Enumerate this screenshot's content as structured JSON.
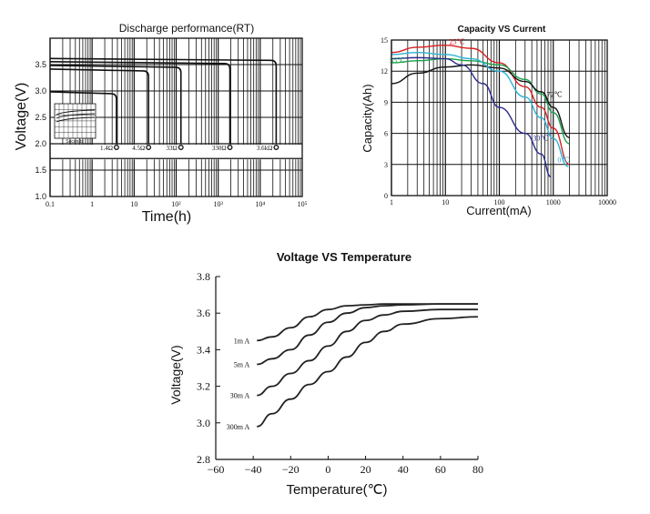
{
  "chart_data": [
    {
      "id": "discharge",
      "type": "line",
      "title": "Discharge performance(RT)",
      "xlabel": "Time(h)",
      "ylabel": "Voltage(V)",
      "xscale": "log",
      "xlim": [
        0.1,
        100000
      ],
      "ylim": [
        1.0,
        4.0
      ],
      "x_tick_labels": [
        "0.1",
        "1",
        "10",
        "10²",
        "10³",
        "10⁴",
        "10⁵"
      ],
      "y_tick_labels": [
        "1.0",
        "1.5",
        "2.0",
        "2.5",
        "3.0",
        "3.5"
      ],
      "y_ticks": [
        1.0,
        1.5,
        2.0,
        2.5,
        3.0,
        3.5
      ],
      "series": [
        {
          "name": "1.4Ω",
          "plateau": 2.95,
          "end_h": 3.8
        },
        {
          "name": "4.5Ω",
          "plateau": 3.38,
          "end_h": 22
        },
        {
          "name": "33Ω",
          "plateau": 3.45,
          "end_h": 130
        },
        {
          "name": "330Ω",
          "plateau": 3.52,
          "end_h": 1900
        },
        {
          "name": "3.6kΩ",
          "plateau": 3.58,
          "end_h": 24000
        }
      ],
      "inset_label": "Seconds"
    },
    {
      "id": "capacity",
      "type": "line",
      "title": "Capacity VS Current",
      "xlabel": "Current(mA)",
      "ylabel": "Capacity(Ah)",
      "xscale": "log",
      "xlim": [
        1,
        10000
      ],
      "ylim": [
        0,
        15
      ],
      "x_tick_labels": [
        "1",
        "10",
        "100",
        "1000",
        "10000"
      ],
      "y_tick_labels": [
        "0",
        "3",
        "6",
        "9",
        "12",
        "15"
      ],
      "y_ticks": [
        0,
        3,
        6,
        9,
        12,
        15
      ],
      "series": [
        {
          "name": "25℃",
          "color": "#d62020",
          "x": [
            1,
            3,
            10,
            30,
            100,
            300,
            600,
            1000,
            2000
          ],
          "y": [
            13.8,
            14.3,
            14.5,
            14.2,
            12.8,
            10.5,
            8.5,
            6.5,
            3.0
          ]
        },
        {
          "name": "55℃",
          "color": "#1aa04a",
          "x": [
            1,
            3,
            10,
            30,
            100,
            300,
            600,
            1000,
            2000
          ],
          "y": [
            12.8,
            13.0,
            13.2,
            13.0,
            12.6,
            11.2,
            9.8,
            8.0,
            5.0
          ]
        },
        {
          "name": "72℃",
          "color": "#111111",
          "x": [
            1,
            3,
            10,
            30,
            100,
            300,
            600,
            1000,
            2000
          ],
          "y": [
            10.8,
            11.8,
            12.4,
            12.6,
            12.3,
            11.0,
            10.0,
            8.5,
            5.6
          ]
        },
        {
          "name": "0℃",
          "color": "#2cb3d6",
          "x": [
            1,
            3,
            10,
            30,
            100,
            300,
            600,
            1000,
            1900
          ],
          "y": [
            13.6,
            13.8,
            13.6,
            13.2,
            12.0,
            9.5,
            7.5,
            5.5,
            2.8
          ]
        },
        {
          "name": "-30℃",
          "color": "#2a2a8c",
          "x": [
            1,
            3,
            10,
            20,
            50,
            100,
            300,
            600,
            900
          ],
          "y": [
            13.2,
            13.3,
            13.2,
            12.6,
            10.8,
            8.5,
            6.0,
            4.0,
            1.8
          ]
        }
      ]
    },
    {
      "id": "voltage_temp",
      "type": "line",
      "title": "Voltage VS Temperature",
      "xlabel": "Temperature(℃)",
      "ylabel": "Voltage(V)",
      "xlim": [
        -60,
        80
      ],
      "ylim": [
        2.8,
        3.8
      ],
      "x_ticks": [
        -60,
        -40,
        -20,
        0,
        20,
        40,
        60,
        80
      ],
      "x_tick_labels": [
        "−60",
        "−40",
        "−20",
        "0",
        "20",
        "40",
        "60",
        "80"
      ],
      "y_ticks": [
        2.8,
        3.0,
        3.2,
        3.4,
        3.6,
        3.8
      ],
      "y_tick_labels": [
        "2.8",
        "3.0",
        "3.2",
        "3.4",
        "3.6",
        "3.8"
      ],
      "series": [
        {
          "name": "1m A",
          "x": [
            -38,
            -30,
            -20,
            -10,
            0,
            10,
            20,
            30,
            40,
            60,
            80
          ],
          "y": [
            3.45,
            3.47,
            3.52,
            3.58,
            3.62,
            3.64,
            3.645,
            3.65,
            3.65,
            3.65,
            3.65
          ]
        },
        {
          "name": "5m A",
          "x": [
            -38,
            -30,
            -20,
            -10,
            0,
            10,
            20,
            30,
            40,
            60,
            80
          ],
          "y": [
            3.32,
            3.35,
            3.4,
            3.48,
            3.55,
            3.6,
            3.63,
            3.64,
            3.645,
            3.65,
            3.65
          ]
        },
        {
          "name": "30m A",
          "x": [
            -38,
            -30,
            -20,
            -10,
            0,
            10,
            20,
            30,
            40,
            60,
            80
          ],
          "y": [
            3.15,
            3.2,
            3.27,
            3.34,
            3.42,
            3.5,
            3.56,
            3.59,
            3.61,
            3.62,
            3.62
          ]
        },
        {
          "name": "300m A",
          "x": [
            -38,
            -30,
            -20,
            -10,
            0,
            10,
            20,
            30,
            40,
            60,
            80
          ],
          "y": [
            2.98,
            3.05,
            3.13,
            3.21,
            3.28,
            3.36,
            3.44,
            3.5,
            3.54,
            3.57,
            3.58
          ]
        }
      ]
    }
  ]
}
